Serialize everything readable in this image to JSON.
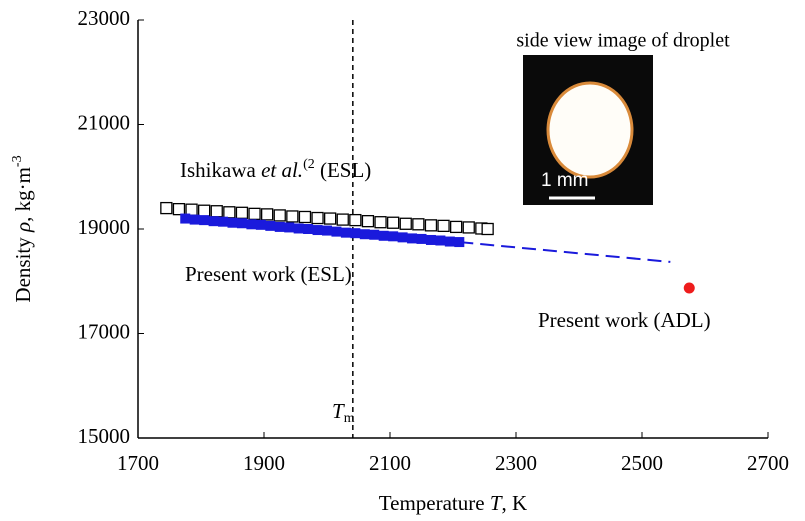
{
  "chart_data": {
    "type": "scatter",
    "xlabel": [
      "Temperature ",
      "T",
      ", K"
    ],
    "ylabel": [
      "Density ",
      "ρ",
      ", kg·m",
      "-3"
    ],
    "xlim": [
      1700,
      2700
    ],
    "xticks": [
      1700,
      1900,
      2100,
      2300,
      2500,
      2700
    ],
    "ylim": [
      15000,
      23000
    ],
    "yticks": [
      15000,
      17000,
      19000,
      21000,
      23000
    ],
    "melting_point": {
      "x": 2041,
      "label": [
        "T",
        "m"
      ]
    },
    "annotations": [
      {
        "parts": [
          "Ishikawa ",
          "et al.",
          "(2",
          " (ESL)"
        ],
        "color": "#000000"
      },
      {
        "parts": [
          "Present work (ESL)"
        ],
        "color": "#1a1adc"
      },
      {
        "parts": [
          "Present work (ADL)"
        ],
        "color": "#ee1c1c"
      }
    ],
    "inset": {
      "title": "side view image of droplet",
      "scale_label": "1 mm"
    },
    "series": [
      {
        "marker": "open-square",
        "color": "#000000",
        "x": [
          1745,
          1765,
          1785,
          1805,
          1825,
          1845,
          1865,
          1885,
          1905,
          1925,
          1945,
          1965,
          1985,
          2005,
          2025,
          2045,
          2065,
          2085,
          2105,
          2125,
          2145,
          2165,
          2185,
          2205,
          2225,
          2245,
          2255
        ],
        "values": [
          19400,
          19380,
          19370,
          19350,
          19340,
          19320,
          19310,
          19290,
          19280,
          19260,
          19240,
          19230,
          19210,
          19200,
          19180,
          19170,
          19150,
          19130,
          19120,
          19100,
          19090,
          19070,
          19060,
          19040,
          19030,
          19010,
          19000
        ]
      },
      {
        "marker": "filled-square",
        "color": "#1a1adc",
        "x": [
          1775,
          1790,
          1805,
          1820,
          1835,
          1850,
          1865,
          1880,
          1895,
          1910,
          1925,
          1940,
          1955,
          1970,
          1985,
          2000,
          2015,
          2030,
          2045,
          2060,
          2075,
          2090,
          2105,
          2120,
          2135,
          2150,
          2165,
          2180,
          2195,
          2210
        ],
        "values": [
          19200,
          19180,
          19170,
          19150,
          19140,
          19120,
          19110,
          19090,
          19080,
          19060,
          19040,
          19030,
          19010,
          19000,
          18980,
          18970,
          18950,
          18930,
          18920,
          18900,
          18890,
          18870,
          18860,
          18840,
          18820,
          18810,
          18790,
          18780,
          18760,
          18750
        ]
      },
      {
        "marker": "dashed-line",
        "color": "#1a1adc",
        "x": [
          2210,
          2545
        ],
        "values": [
          18750,
          18370
        ]
      },
      {
        "marker": "circle",
        "color": "#ee1c1c",
        "x": [
          2575
        ],
        "values": [
          17870
        ]
      }
    ]
  }
}
